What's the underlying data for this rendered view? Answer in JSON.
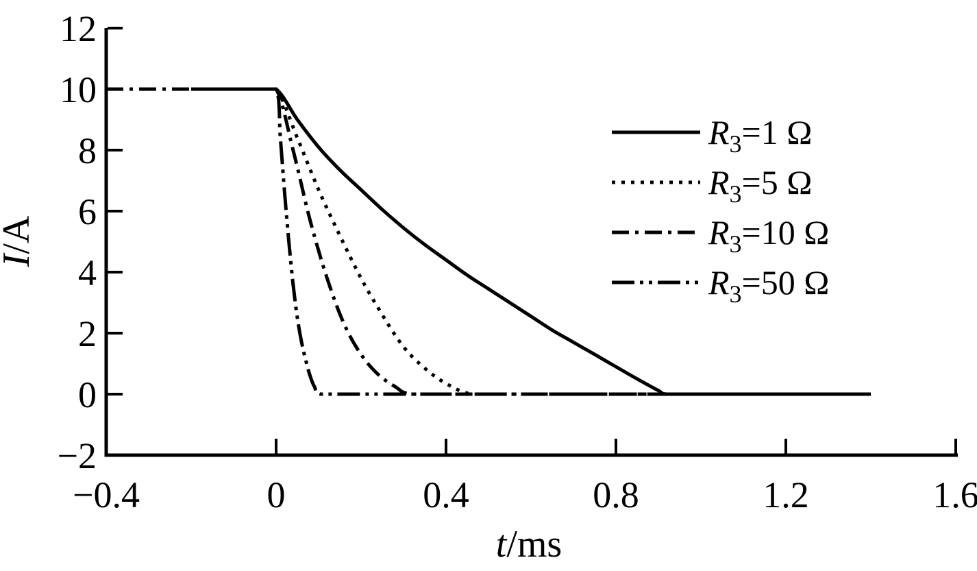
{
  "figure": {
    "background_color": "#ffffff",
    "line_color": "#000000"
  },
  "chart_data": {
    "type": "line",
    "title": "",
    "xlabel": "t/ms",
    "xlabel_italic": "t",
    "xlabel_rest": "/ms",
    "ylabel": "I/A",
    "ylabel_italic": "I",
    "ylabel_rest": "/A",
    "xlim": [
      -0.4,
      1.6
    ],
    "ylim": [
      -2,
      12
    ],
    "x_ticks": [
      -0.4,
      0,
      0.4,
      0.8,
      1.2,
      1.6
    ],
    "x_tick_labels": [
      "−0.4",
      "0",
      "0.4",
      "0.8",
      "1.2",
      "1.6"
    ],
    "y_ticks": [
      12,
      10,
      8,
      6,
      4,
      2,
      0,
      -2
    ],
    "y_tick_labels": [
      "12",
      "10",
      "8",
      "6",
      "4",
      "2",
      "0",
      "−2"
    ],
    "grid": false,
    "legend_position": "upper right inside",
    "series": [
      {
        "name": "R3=1 Ω",
        "legend": {
          "base": "R",
          "sub": "3",
          "rest": "=1 Ω"
        },
        "style": "solid",
        "points": [
          [
            -0.2,
            10
          ],
          [
            -0.05,
            10
          ],
          [
            0,
            10
          ],
          [
            0.05,
            9.0
          ],
          [
            0.1,
            8.1
          ],
          [
            0.15,
            7.35
          ],
          [
            0.2,
            6.7
          ],
          [
            0.25,
            6.05
          ],
          [
            0.3,
            5.45
          ],
          [
            0.35,
            4.9
          ],
          [
            0.4,
            4.4
          ],
          [
            0.45,
            3.9
          ],
          [
            0.5,
            3.45
          ],
          [
            0.55,
            3.0
          ],
          [
            0.6,
            2.55
          ],
          [
            0.65,
            2.1
          ],
          [
            0.7,
            1.7
          ],
          [
            0.75,
            1.3
          ],
          [
            0.8,
            0.9
          ],
          [
            0.85,
            0.5
          ],
          [
            0.9,
            0.12
          ],
          [
            0.92,
            0
          ],
          [
            1.0,
            0
          ],
          [
            1.4,
            0
          ]
        ]
      },
      {
        "name": "R3=5 Ω",
        "legend": {
          "base": "R",
          "sub": "3",
          "rest": "=5 Ω"
        },
        "style": "dotted",
        "points": [
          [
            -0.2,
            10
          ],
          [
            -0.05,
            10
          ],
          [
            0,
            10
          ],
          [
            0.05,
            8.4
          ],
          [
            0.1,
            6.7
          ],
          [
            0.15,
            5.2
          ],
          [
            0.2,
            3.8
          ],
          [
            0.25,
            2.6
          ],
          [
            0.3,
            1.55
          ],
          [
            0.35,
            0.85
          ],
          [
            0.4,
            0.35
          ],
          [
            0.46,
            0
          ],
          [
            0.55,
            0
          ],
          [
            1.4,
            0
          ]
        ]
      },
      {
        "name": "R3=10 Ω",
        "legend": {
          "base": "R",
          "sub": "3",
          "rest": "=10 Ω"
        },
        "style": "dashdot",
        "points": [
          [
            -0.4,
            10
          ],
          [
            -0.05,
            10
          ],
          [
            0,
            10
          ],
          [
            0.04,
            8.0
          ],
          [
            0.08,
            5.7
          ],
          [
            0.12,
            3.8
          ],
          [
            0.16,
            2.3
          ],
          [
            0.2,
            1.3
          ],
          [
            0.24,
            0.65
          ],
          [
            0.28,
            0.25
          ],
          [
            0.32,
            0
          ],
          [
            0.45,
            0
          ],
          [
            1.4,
            0
          ]
        ]
      },
      {
        "name": "R3=50 Ω",
        "legend": {
          "base": "R",
          "sub": "3",
          "rest": "=50 Ω"
        },
        "style": "dashdotdot",
        "points": [
          [
            -0.2,
            10
          ],
          [
            -0.05,
            10
          ],
          [
            0,
            10
          ],
          [
            0.01,
            8.4
          ],
          [
            0.02,
            6.6
          ],
          [
            0.03,
            5.0
          ],
          [
            0.04,
            3.6
          ],
          [
            0.05,
            2.5
          ],
          [
            0.06,
            1.7
          ],
          [
            0.07,
            1.1
          ],
          [
            0.08,
            0.6
          ],
          [
            0.09,
            0.25
          ],
          [
            0.105,
            0
          ],
          [
            0.2,
            0
          ],
          [
            1.4,
            0
          ]
        ]
      }
    ]
  }
}
